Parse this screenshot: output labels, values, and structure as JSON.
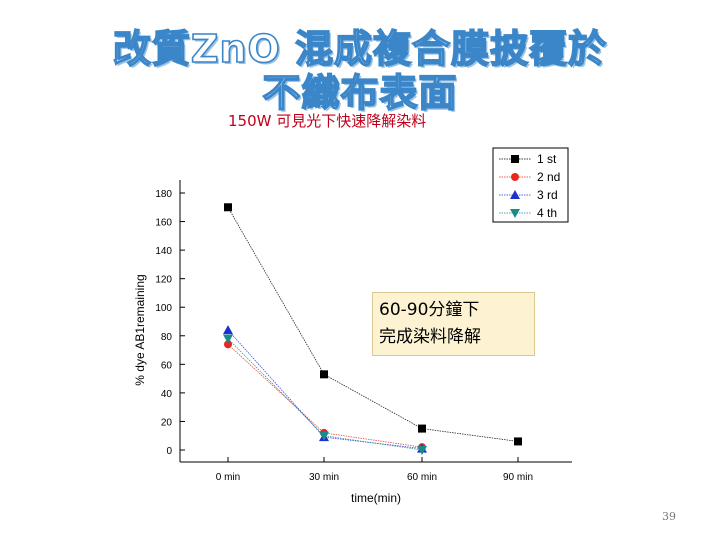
{
  "slide": {
    "title_line1": "改質ZnO 混成複合膜披覆於",
    "title_line2": "不織布表面",
    "subtitle": "150W 可見光下快速降解染料",
    "note_line1": "60-90分鐘下",
    "note_line2": "完成染料降解",
    "page_number": "39",
    "title_color": "#3a86c8",
    "subtitle_color": "#c0001a"
  },
  "chart_data": {
    "type": "line",
    "categories": [
      "0 min",
      "30 min",
      "60 min",
      "90 min"
    ],
    "xlabel": "time(min)",
    "ylabel": "% dye AB1remaining",
    "ylim": [
      0,
      180
    ],
    "yticks": [
      0,
      20,
      40,
      60,
      80,
      100,
      120,
      140,
      160,
      180
    ],
    "grid": false,
    "legend_position": "top-right",
    "series": [
      {
        "name": "1 st",
        "marker": "square",
        "color": "#000000",
        "values": [
          170,
          53,
          15,
          6
        ]
      },
      {
        "name": "2 nd",
        "marker": "circle",
        "color": "#e8281e",
        "values": [
          74,
          12,
          2,
          null
        ]
      },
      {
        "name": "3 rd",
        "marker": "triangle-up",
        "color": "#1f2fd0",
        "values": [
          84,
          9,
          1,
          null
        ]
      },
      {
        "name": "4 th",
        "marker": "triangle-down",
        "color": "#1a8a8a",
        "values": [
          78,
          10,
          0,
          null
        ]
      }
    ]
  }
}
